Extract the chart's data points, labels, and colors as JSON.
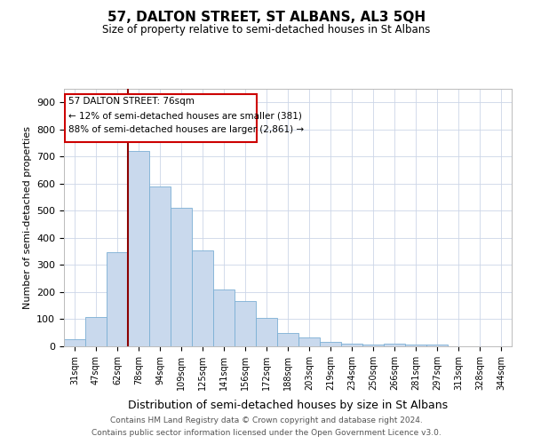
{
  "title": "57, DALTON STREET, ST ALBANS, AL3 5QH",
  "subtitle": "Size of property relative to semi-detached houses in St Albans",
  "xlabel": "Distribution of semi-detached houses by size in St Albans",
  "ylabel": "Number of semi-detached properties",
  "categories": [
    "31sqm",
    "47sqm",
    "62sqm",
    "78sqm",
    "94sqm",
    "109sqm",
    "125sqm",
    "141sqm",
    "156sqm",
    "172sqm",
    "188sqm",
    "203sqm",
    "219sqm",
    "234sqm",
    "250sqm",
    "266sqm",
    "281sqm",
    "297sqm",
    "313sqm",
    "328sqm",
    "344sqm"
  ],
  "values": [
    25,
    107,
    348,
    722,
    591,
    511,
    353,
    210,
    167,
    104,
    50,
    32,
    18,
    10,
    7,
    10,
    7,
    5,
    0,
    0,
    0
  ],
  "bar_color": "#c9d9ed",
  "bar_edge_color": "#7bafd4",
  "property_line_index": 3,
  "property_line_color": "#8b0000",
  "property_label": "57 DALTON STREET: 76sqm",
  "smaller_pct": "12%",
  "smaller_n": "381",
  "larger_pct": "88%",
  "larger_n": "2,861",
  "annotation_box_color": "#cc0000",
  "ylim": [
    0,
    950
  ],
  "yticks": [
    0,
    100,
    200,
    300,
    400,
    500,
    600,
    700,
    800,
    900
  ],
  "footer1": "Contains HM Land Registry data © Crown copyright and database right 2024.",
  "footer2": "Contains public sector information licensed under the Open Government Licence v3.0.",
  "bg_color": "#ffffff",
  "grid_color": "#ccd6e8"
}
